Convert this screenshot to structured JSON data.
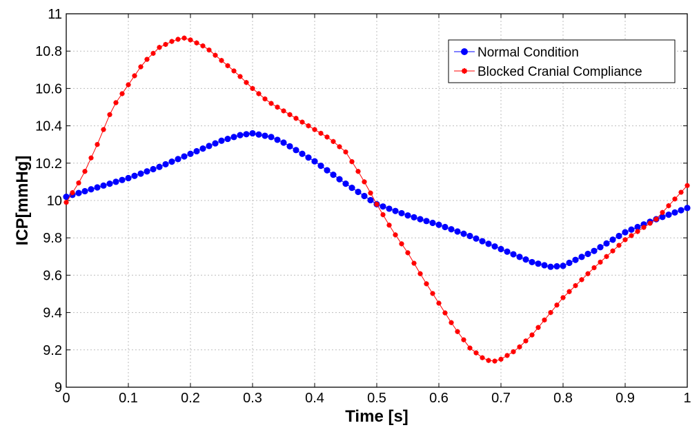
{
  "chart_data": {
    "type": "line",
    "xlabel": "Time [s]",
    "ylabel": "ICP[mmHg]",
    "xlim": [
      0,
      1
    ],
    "ylim": [
      9,
      11
    ],
    "xticks": [
      "0",
      "0.1",
      "0.2",
      "0.3",
      "0.4",
      "0.5",
      "0.6",
      "0.7",
      "0.8",
      "0.9",
      "1"
    ],
    "yticks": [
      "9",
      "9.2",
      "9.4",
      "9.6",
      "9.8",
      "10",
      "10.2",
      "10.4",
      "10.6",
      "10.8",
      "11"
    ],
    "grid": true,
    "legend_position": "top-right",
    "series": [
      {
        "name": "Normal Condition",
        "color": "#0000ff",
        "marker": "dot",
        "x": [
          0,
          0.05,
          0.1,
          0.15,
          0.2,
          0.25,
          0.28,
          0.3,
          0.33,
          0.35,
          0.4,
          0.45,
          0.5,
          0.55,
          0.6,
          0.65,
          0.7,
          0.75,
          0.78,
          0.8,
          0.85,
          0.9,
          0.95,
          1.0
        ],
        "y": [
          10.02,
          10.07,
          10.12,
          10.18,
          10.25,
          10.32,
          10.35,
          10.36,
          10.34,
          10.31,
          10.21,
          10.09,
          9.98,
          9.92,
          9.87,
          9.81,
          9.74,
          9.67,
          9.645,
          9.65,
          9.73,
          9.83,
          9.9,
          9.96
        ]
      },
      {
        "name": "Blocked Cranial Compliance",
        "color": "#ff0000",
        "marker": "star",
        "x": [
          0,
          0.025,
          0.05,
          0.075,
          0.1,
          0.125,
          0.15,
          0.175,
          0.19,
          0.2,
          0.225,
          0.25,
          0.275,
          0.3,
          0.325,
          0.35,
          0.375,
          0.4,
          0.425,
          0.45,
          0.475,
          0.5,
          0.525,
          0.55,
          0.575,
          0.6,
          0.625,
          0.65,
          0.675,
          0.69,
          0.7,
          0.725,
          0.75,
          0.775,
          0.8,
          0.85,
          0.9,
          0.95,
          1.0
        ],
        "y": [
          9.99,
          10.12,
          10.3,
          10.5,
          10.62,
          10.74,
          10.82,
          10.86,
          10.87,
          10.86,
          10.82,
          10.75,
          10.68,
          10.6,
          10.53,
          10.48,
          10.43,
          10.38,
          10.33,
          10.26,
          10.13,
          9.98,
          9.84,
          9.72,
          9.58,
          9.45,
          9.32,
          9.21,
          9.145,
          9.14,
          9.15,
          9.2,
          9.28,
          9.38,
          9.48,
          9.64,
          9.79,
          9.9,
          10.08
        ]
      }
    ]
  }
}
